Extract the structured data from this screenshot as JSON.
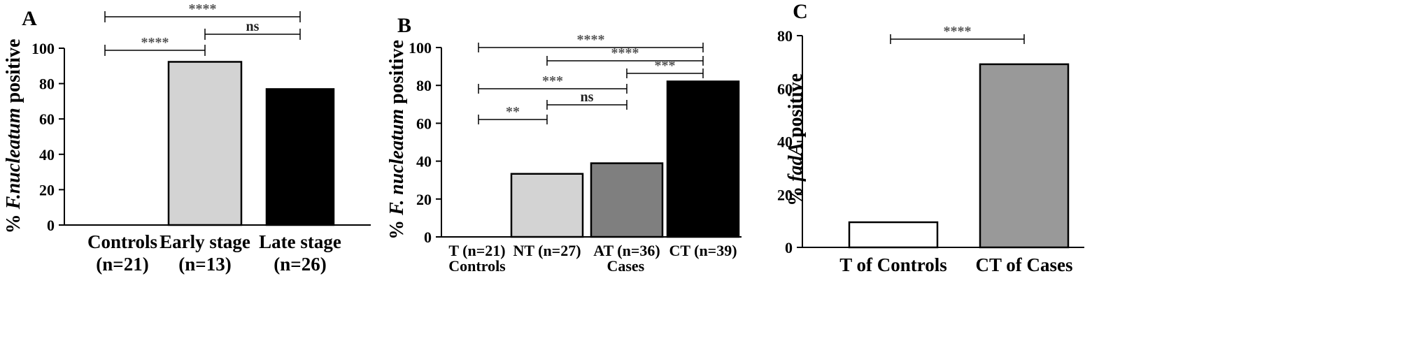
{
  "chart_data": [
    {
      "id": "A",
      "panel_label": "A",
      "type": "bar",
      "ylabel_parts": [
        "% ",
        "F.nucleatum",
        " positive"
      ],
      "ylim": [
        0,
        100
      ],
      "yticks": [
        0,
        20,
        40,
        60,
        80,
        100
      ],
      "categories": [
        {
          "line1": "Controls",
          "line2": "(n=21)"
        },
        {
          "line1": "Early stage",
          "line2": "(n=13)"
        },
        {
          "line1": "Late stage",
          "line2": "(n=26)"
        }
      ],
      "values": [
        0,
        92.3,
        76.9
      ],
      "bar_colors": [
        "#ffffff",
        "#d3d3d3",
        "#000000"
      ],
      "significance": [
        {
          "from": 0,
          "to": 2,
          "label": "****"
        },
        {
          "from": 1,
          "to": 2,
          "label": "ns"
        },
        {
          "from": 0,
          "to": 1,
          "label": "****"
        }
      ]
    },
    {
      "id": "B",
      "panel_label": "B",
      "type": "bar",
      "ylabel_parts": [
        "% ",
        "F. nucleatum",
        " positive"
      ],
      "ylim": [
        0,
        100
      ],
      "yticks": [
        0,
        20,
        40,
        60,
        80,
        100
      ],
      "categories": [
        {
          "line1": "T (n=21)"
        },
        {
          "line1": "NT (n=27)"
        },
        {
          "line1": "AT (n=36)"
        },
        {
          "line1": "CT (n=39)"
        }
      ],
      "group_labels": [
        {
          "label": "Controls",
          "categories": [
            0
          ]
        },
        {
          "label": "Cases",
          "categories": [
            1,
            2,
            3
          ]
        }
      ],
      "values": [
        0,
        33.3,
        38.9,
        82.1
      ],
      "bar_colors": [
        "#ffffff",
        "#d3d3d3",
        "#7f7f7f",
        "#000000"
      ],
      "significance": [
        {
          "from": 0,
          "to": 3,
          "label": "****"
        },
        {
          "from": 1,
          "to": 3,
          "label": "****"
        },
        {
          "from": 2,
          "to": 3,
          "label": "***"
        },
        {
          "from": 0,
          "to": 2,
          "label": "***"
        },
        {
          "from": 1,
          "to": 2,
          "label": "ns"
        },
        {
          "from": 0,
          "to": 1,
          "label": "**"
        }
      ]
    },
    {
      "id": "C",
      "panel_label": "C",
      "type": "bar",
      "ylabel_parts": [
        "% ",
        "fadA",
        " positive"
      ],
      "ylim": [
        0,
        80
      ],
      "yticks": [
        0,
        20,
        40,
        60,
        80
      ],
      "categories": [
        {
          "line1": "T of Controls"
        },
        {
          "line1": "CT of Cases"
        }
      ],
      "values": [
        9.5,
        69.2
      ],
      "bar_colors": [
        "#ffffff",
        "#999999"
      ],
      "significance": [
        {
          "from": 0,
          "to": 1,
          "label": "****"
        }
      ]
    }
  ]
}
